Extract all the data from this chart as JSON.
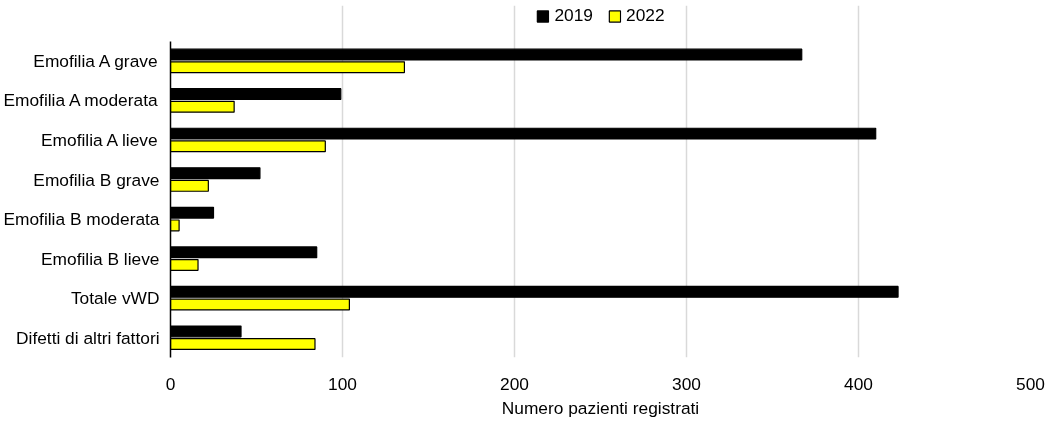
{
  "chart_data": {
    "type": "bar",
    "orientation": "horizontal",
    "xlabel": "Numero pazienti registrati",
    "categories": [
      "Emofilia A grave",
      "Emofilia A moderata",
      "Emofilia A lieve",
      "Emofilia B grave",
      "Emofilia B moderata",
      "Emofilia B lieve",
      "Totale vWD",
      "Difetti di altri fattori"
    ],
    "series": [
      {
        "name": "2019",
        "color": "#000000",
        "values": [
          367,
          99,
          410,
          52,
          25,
          85,
          423,
          41
        ]
      },
      {
        "name": "2022",
        "color": "#ffff00",
        "values": [
          136,
          37,
          90,
          22,
          5,
          16,
          104,
          84
        ]
      }
    ],
    "xlim": [
      0,
      500
    ],
    "xticks": [
      0,
      100,
      200,
      300,
      400,
      500
    ],
    "grid": "x",
    "legend": "top"
  }
}
